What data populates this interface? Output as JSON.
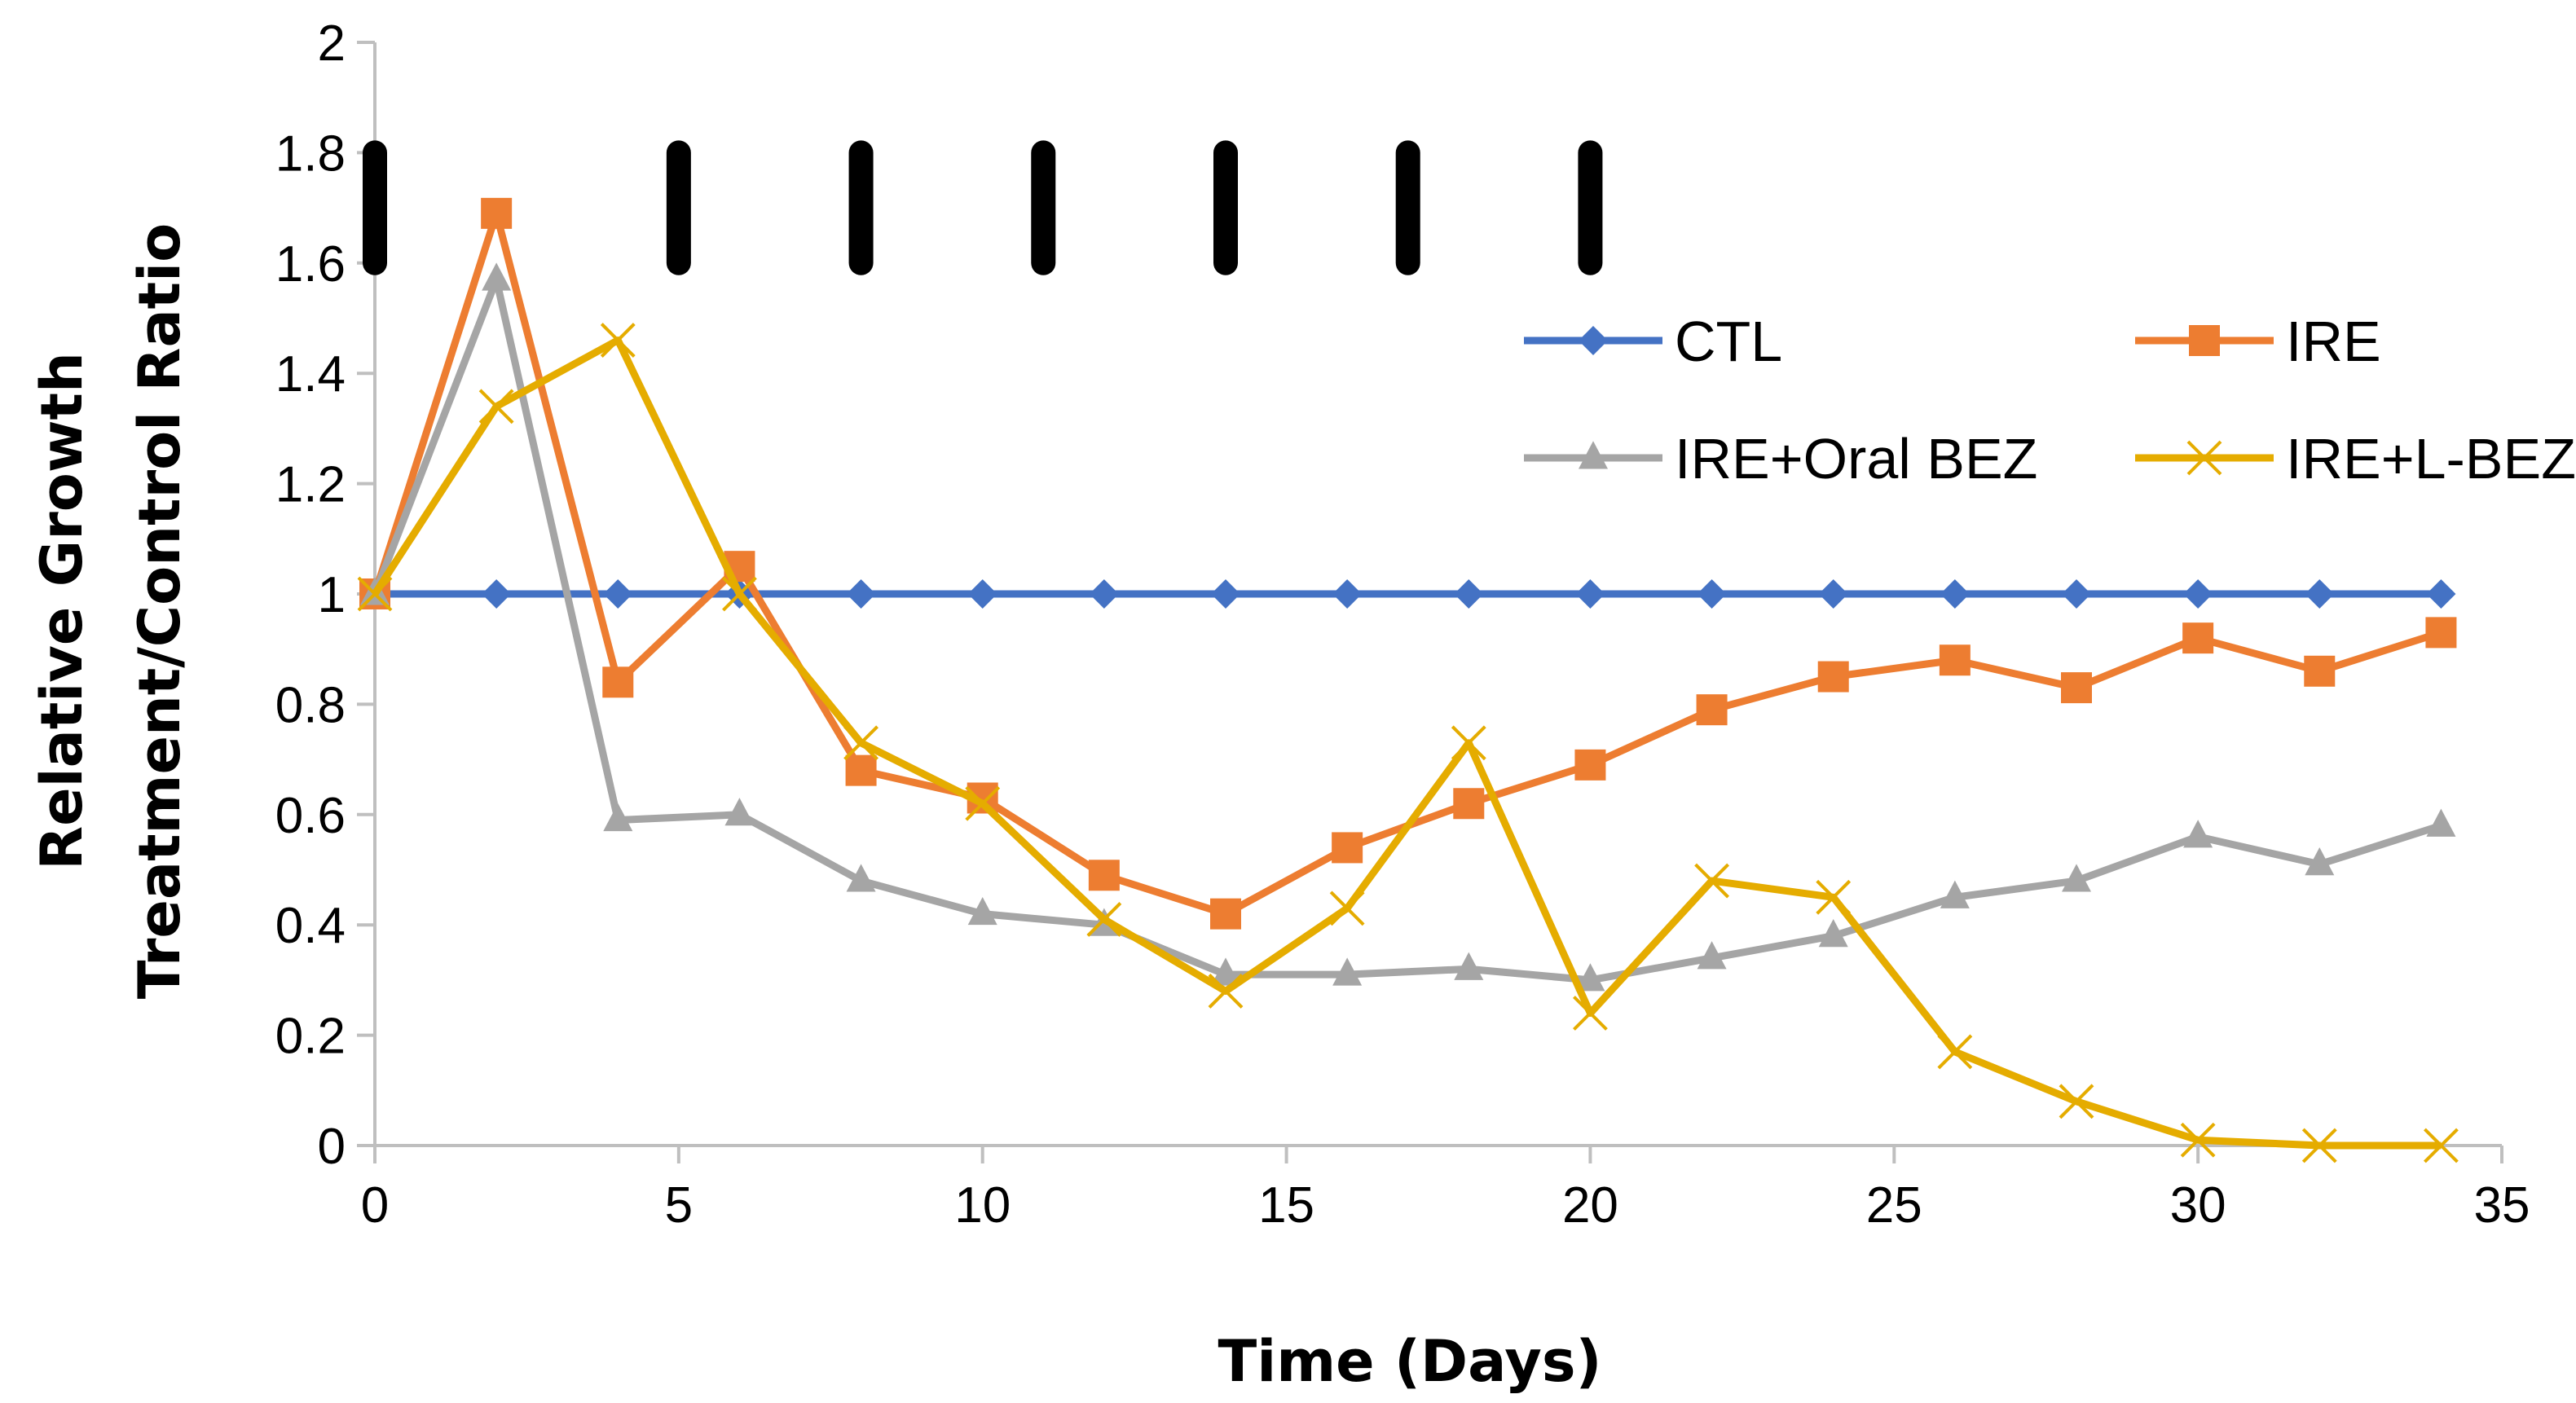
{
  "chart_data": {
    "type": "line",
    "title": "",
    "xlabel": "Time (Days)",
    "ylabel_lines": [
      "Relative Growth",
      "Treatment/Control Ratio"
    ],
    "xlim": [
      0,
      35
    ],
    "ylim": [
      0,
      2
    ],
    "xticks": [
      0,
      5,
      10,
      15,
      20,
      25,
      30,
      35
    ],
    "yticks": [
      0,
      0.2,
      0.4,
      0.6,
      0.8,
      1,
      1.2,
      1.4,
      1.6,
      1.8,
      2
    ],
    "xtick_labels": [
      "0",
      "5",
      "10",
      "15",
      "20",
      "25",
      "30",
      "35"
    ],
    "ytick_labels": [
      "0",
      "0.2",
      "0.4",
      "0.6",
      "0.8",
      "1",
      "1.2",
      "1.4",
      "1.6",
      "1.8",
      "2"
    ],
    "grid": false,
    "legend_position": "top-right",
    "x": [
      0,
      2,
      4,
      6,
      8,
      10,
      12,
      14,
      16,
      18,
      20,
      22,
      24,
      26,
      28,
      30,
      32,
      34
    ],
    "series": [
      {
        "name": "CTL",
        "color": "#4472C4",
        "marker": "diamond",
        "values": [
          1,
          1,
          1,
          1,
          1,
          1,
          1,
          1,
          1,
          1,
          1,
          1,
          1,
          1,
          1,
          1,
          1,
          1
        ]
      },
      {
        "name": "IRE",
        "color": "#ED7D31",
        "marker": "square",
        "values": [
          1,
          1.69,
          0.84,
          1.05,
          0.68,
          0.63,
          0.49,
          0.42,
          0.54,
          0.62,
          0.69,
          0.79,
          0.85,
          0.88,
          0.83,
          0.92,
          0.86,
          0.93
        ]
      },
      {
        "name": "IRE+Oral BEZ",
        "color": "#A5A5A5",
        "marker": "triangle",
        "values": [
          1,
          1.57,
          0.59,
          0.6,
          0.48,
          0.42,
          0.4,
          0.31,
          0.31,
          0.32,
          0.3,
          0.34,
          0.38,
          0.45,
          0.48,
          0.56,
          0.51,
          0.58
        ]
      },
      {
        "name": "IRE+L-BEZ",
        "color": "#E5AC00",
        "marker": "x",
        "values": [
          1,
          1.34,
          1.46,
          1,
          0.73,
          0.62,
          0.41,
          0.28,
          0.43,
          0.73,
          0.24,
          0.48,
          0.45,
          0.17,
          0.08,
          0.01,
          0,
          0
        ]
      }
    ],
    "treatment_markers": {
      "color": "#000000",
      "x": [
        0,
        5,
        8,
        11,
        14,
        17,
        20
      ],
      "y_range": [
        1.6,
        1.8
      ]
    }
  }
}
